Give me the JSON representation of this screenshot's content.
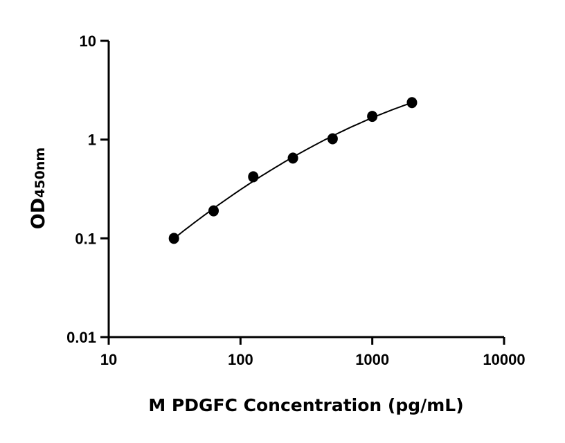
{
  "chart_data": {
    "type": "scatter",
    "xlabel": "M PDGFC Concentration (pg/mL)",
    "ylabel": {
      "main": "OD",
      "subscript": "450nm"
    },
    "x_scale": "log",
    "y_scale": "log",
    "xlim": [
      10,
      10000
    ],
    "ylim": [
      0.01,
      10
    ],
    "x_ticks": [
      "10",
      "100",
      "1000",
      "10000"
    ],
    "y_ticks": [
      "0.01",
      "0.1",
      "1",
      "10"
    ],
    "grid": false,
    "fit_curve": true,
    "colors": {
      "points": "#000000",
      "curve": "#000000",
      "axes": "#000000"
    },
    "series": [
      {
        "x": [
          31.25,
          62.5,
          125,
          250,
          500,
          1000,
          2000
        ],
        "y": [
          0.1,
          0.19,
          0.42,
          0.65,
          1.02,
          1.72,
          2.37
        ]
      }
    ]
  }
}
